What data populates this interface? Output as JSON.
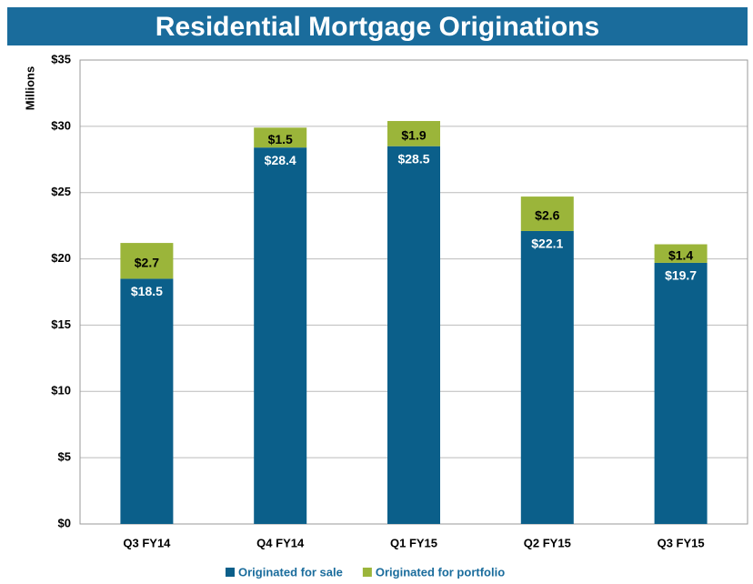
{
  "chart_data": {
    "type": "stacked_bar",
    "title": "Residential Mortgage Originations",
    "y_label": "Millions",
    "categories": [
      "Q3 FY14",
      "Q4 FY14",
      "Q1 FY15",
      "Q2 FY15",
      "Q3 FY15"
    ],
    "series": [
      {
        "name": "Originated for sale",
        "color": "#0b5f8a",
        "values": [
          18.5,
          28.4,
          28.5,
          22.1,
          19.7
        ],
        "value_labels": [
          "$18.5",
          "$28.4",
          "$28.5",
          "$22.1",
          "$19.7"
        ]
      },
      {
        "name": "Originated for portfolio",
        "color": "#9bb53a",
        "values": [
          2.7,
          1.5,
          1.9,
          2.6,
          1.4
        ],
        "value_labels": [
          "$2.7",
          "$1.5",
          "$1.9",
          "$2.6",
          "$1.4"
        ]
      }
    ],
    "ylim": [
      0,
      35
    ],
    "yticks": [
      {
        "value": 0,
        "label": "$0"
      },
      {
        "value": 5,
        "label": "$5"
      },
      {
        "value": 10,
        "label": "$10"
      },
      {
        "value": 15,
        "label": "$15"
      },
      {
        "value": 20,
        "label": "$20"
      },
      {
        "value": 25,
        "label": "$25"
      },
      {
        "value": 30,
        "label": "$30"
      },
      {
        "value": 35,
        "label": "$35"
      }
    ],
    "grid": true,
    "legend": "bottom"
  }
}
